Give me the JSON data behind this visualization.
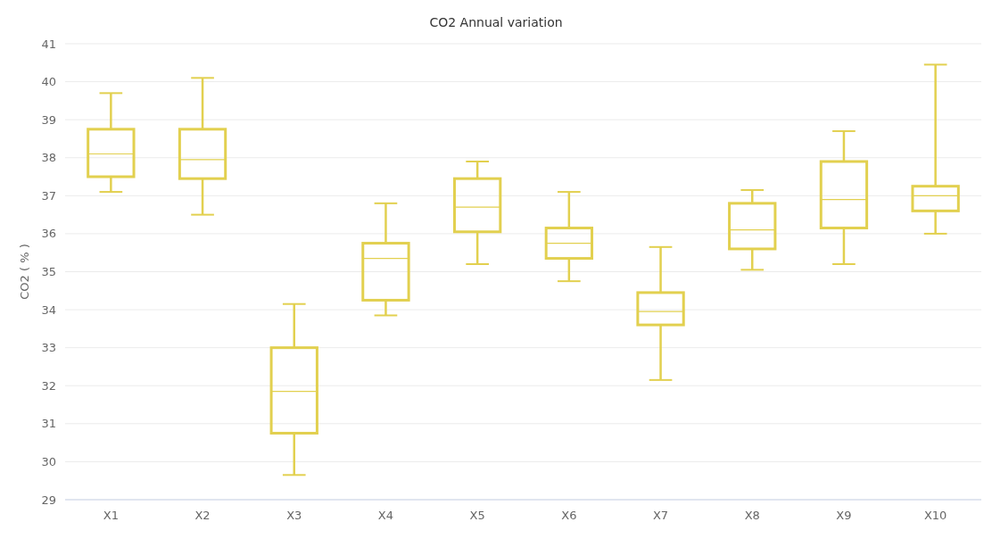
{
  "chart_data": {
    "type": "box",
    "title": "CO2 Annual variation",
    "ylabel": "CO2 ( % )",
    "categories": [
      "X1",
      "X2",
      "X3",
      "X4",
      "X5",
      "X6",
      "X7",
      "X8",
      "X9",
      "X10"
    ],
    "series": [
      {
        "color": "#e2d04f",
        "boxes": [
          {
            "low": 37.1,
            "q1": 37.5,
            "median": 38.1,
            "q3": 38.75,
            "high": 39.7
          },
          {
            "low": 36.5,
            "q1": 37.45,
            "median": 37.95,
            "q3": 38.75,
            "high": 40.1
          },
          {
            "low": 29.65,
            "q1": 30.75,
            "median": 31.85,
            "q3": 33.0,
            "high": 34.15
          },
          {
            "low": 33.85,
            "q1": 34.25,
            "median": 35.35,
            "q3": 35.75,
            "high": 36.8
          },
          {
            "low": 35.2,
            "q1": 36.05,
            "median": 36.7,
            "q3": 37.45,
            "high": 37.9
          },
          {
            "low": 34.75,
            "q1": 35.35,
            "median": 35.75,
            "q3": 36.15,
            "high": 37.1
          },
          {
            "low": 32.15,
            "q1": 33.6,
            "median": 33.95,
            "q3": 34.45,
            "high": 35.65
          },
          {
            "low": 35.05,
            "q1": 35.6,
            "median": 36.1,
            "q3": 36.8,
            "high": 37.15
          },
          {
            "low": 35.2,
            "q1": 36.15,
            "median": 36.9,
            "q3": 37.9,
            "high": 38.7
          },
          {
            "low": 36.0,
            "q1": 36.6,
            "median": 37.0,
            "q3": 37.25,
            "high": 40.45
          }
        ]
      }
    ],
    "ylim": [
      29,
      41
    ],
    "yticks": [
      29,
      30,
      31,
      32,
      33,
      34,
      35,
      36,
      37,
      38,
      39,
      40,
      41
    ],
    "grid": "y"
  }
}
